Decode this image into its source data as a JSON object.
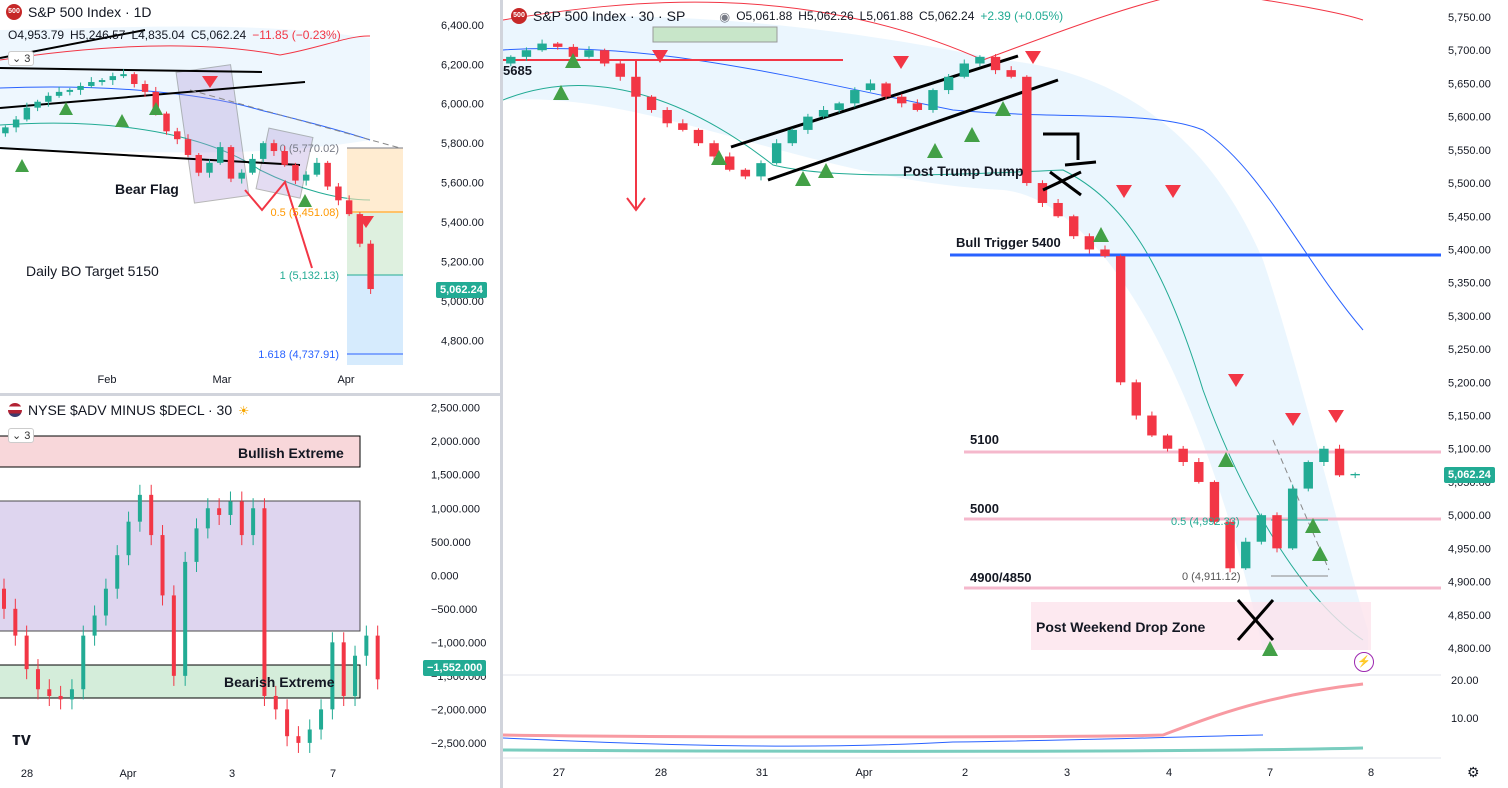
{
  "daily": {
    "logo": "500",
    "title": "S&P 500 Index · 1D",
    "ohlc": {
      "o": "O4,953.79",
      "h": "H5,246.57",
      "l": "L4,835.04",
      "c": "C5,062.24",
      "chg": "−11.85 (−0.23%)"
    },
    "indicator_count": "3",
    "y_ticks": [
      "6,400.00",
      "6,200.00",
      "6,000.00",
      "5,800.00",
      "5,600.00",
      "5,400.00",
      "5,200.00",
      "5,000.00",
      "4,800.00"
    ],
    "x_ticks": [
      "Feb",
      "Mar",
      "Apr"
    ],
    "price_tag": "5,062.24",
    "annotations": {
      "bear_flag": "Bear Flag",
      "bo_target": "Daily BO Target 5150"
    },
    "fib": {
      "f0": "0 (5,770.02)",
      "f05": "0.5 (5,451.08)",
      "f1": "1 (5,132.13)",
      "f1618": "1.618 (4,737.91)"
    }
  },
  "breadth": {
    "title": "NYSE $ADV MINUS $DECL · 30",
    "indicator_count": "3",
    "y_ticks": [
      "2,500.000",
      "2,000.000",
      "1,500.000",
      "1,000.000",
      "500.000",
      "0.000",
      "−500.000",
      "−1,000.000",
      "−1,500.000",
      "−2,000.000",
      "−2,500.000"
    ],
    "x_ticks": [
      "28",
      "Apr",
      "3",
      "7"
    ],
    "value_tag": "−1,552.000",
    "annotations": {
      "bullish": "Bullish Extreme",
      "bearish": "Bearish Extreme"
    }
  },
  "main": {
    "logo": "500",
    "title": "S&P 500 Index · 30 · SP",
    "ohlc": {
      "o": "O5,061.88",
      "h": "H5,062.26",
      "l": "L5,061.88",
      "c": "C5,062.24",
      "chg": "+2.39 (+0.05%)"
    },
    "y_ticks": [
      "5,750.00",
      "5,700.00",
      "5,650.00",
      "5,600.00",
      "5,550.00",
      "5,500.00",
      "5,450.00",
      "5,400.00",
      "5,350.00",
      "5,300.00",
      "5,250.00",
      "5,200.00",
      "5,150.00",
      "5,100.00",
      "5,050.00",
      "5,000.00",
      "4,950.00",
      "4,900.00",
      "4,850.00",
      "4,800.00"
    ],
    "adx_ticks": [
      "20.00",
      "10.00"
    ],
    "x_ticks": [
      "27",
      "28",
      "31",
      "Apr",
      "2",
      "3",
      "4",
      "7",
      "8"
    ],
    "price_tag": "5,062.24",
    "annotations": {
      "lvl_5685": "5685",
      "post_trump": "Post Trump Dump",
      "bull_trigger": "Bull Trigger 5400",
      "l5100": "5100",
      "l5000": "5000",
      "l4900": "4900/4850",
      "drop_zone": "Post Weekend Drop Zone",
      "fib05": "0.5 (4,992.33)",
      "fib0": "0 (4,911.12)"
    }
  },
  "colors": {
    "up": "#22ab94",
    "down": "#f23645",
    "blue": "#2962ff",
    "pink": "#f5b8cc",
    "band": "#e3f2fd"
  },
  "chart_data": [
    {
      "type": "candlestick",
      "title": "S&P 500 Index · 1D",
      "x_ticks": [
        "Feb",
        "Mar",
        "Apr"
      ],
      "ylim": [
        4700,
        6450
      ],
      "close_series": [
        5880,
        5920,
        5980,
        6010,
        6040,
        6060,
        6070,
        6090,
        6110,
        6120,
        6140,
        6150,
        6100,
        6060,
        5950,
        5860,
        5820,
        5740,
        5650,
        5700,
        5780,
        5620,
        5650,
        5720,
        5800,
        5760,
        5690,
        5610,
        5640,
        5700,
        5580,
        5510,
        5440,
        5290,
        5060
      ],
      "last": {
        "open": 4953.79,
        "high": 5246.57,
        "low": 4835.04,
        "close": 5062.24
      }
    },
    {
      "type": "line",
      "title": "NYSE $ADV MINUS $DECL · 30",
      "ylim": [
        -2800,
        2600
      ],
      "values": [
        -500,
        -900,
        -1400,
        -1700,
        -1800,
        -1850,
        -1700,
        -900,
        -600,
        -200,
        300,
        800,
        1200,
        600,
        -300,
        -1500,
        200,
        700,
        1000,
        900,
        1100,
        600,
        1000,
        -1800,
        -2000,
        -2400,
        -2500,
        -2300,
        -2000,
        -1000,
        -1800,
        -1200,
        -900,
        -1552
      ]
    },
    {
      "type": "candlestick",
      "title": "S&P 500 Index · 30 · SP",
      "x_ticks": [
        "27",
        "28",
        "31",
        "Apr",
        "2",
        "3",
        "4",
        "7",
        "8"
      ],
      "ylim": [
        4780,
        5775
      ],
      "close_series": [
        5690,
        5700,
        5710,
        5705,
        5690,
        5700,
        5680,
        5660,
        5630,
        5610,
        5590,
        5580,
        5560,
        5540,
        5520,
        5510,
        5530,
        5560,
        5580,
        5600,
        5610,
        5620,
        5640,
        5650,
        5630,
        5620,
        5610,
        5640,
        5660,
        5680,
        5690,
        5670,
        5660,
        5500,
        5470,
        5450,
        5420,
        5400,
        5390,
        5200,
        5150,
        5120,
        5100,
        5080,
        5050,
        4990,
        4920,
        4960,
        5000,
        4950,
        5040,
        5080,
        5100,
        5060,
        5062
      ],
      "levels": [
        5685,
        5400,
        5100,
        5000,
        4900,
        4850
      ],
      "last": {
        "open": 5061.88,
        "high": 5062.26,
        "low": 5061.88,
        "close": 5062.24
      }
    }
  ]
}
